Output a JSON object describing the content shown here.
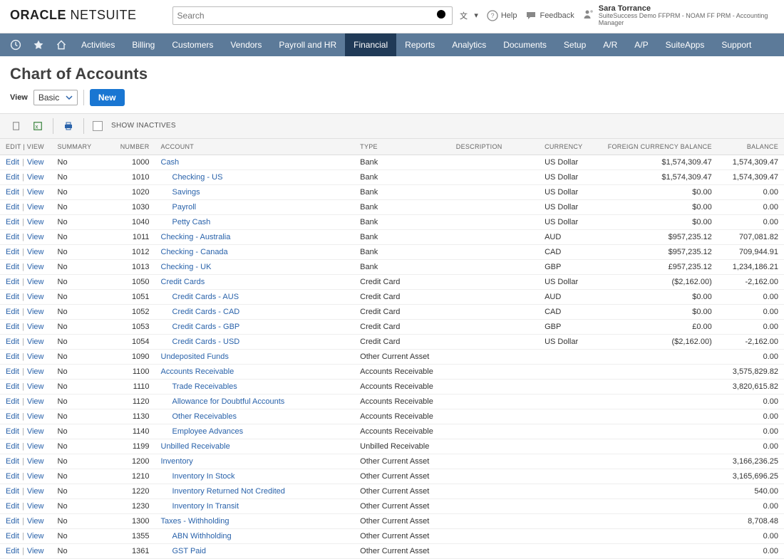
{
  "search": {
    "placeholder": "Search"
  },
  "help_label": "Help",
  "feedback_label": "Feedback",
  "user": {
    "name": "Sara Torrance",
    "subtitle": "SuiteSuccess Demo FFPRM - NOAM FF PRM - Accounting Manager"
  },
  "nav": {
    "items": [
      "Activities",
      "Billing",
      "Customers",
      "Vendors",
      "Payroll and HR",
      "Financial",
      "Reports",
      "Analytics",
      "Documents",
      "Setup",
      "A/R",
      "A/P",
      "SuiteApps",
      "Support"
    ],
    "active_index": 5
  },
  "page_title": "Chart of Accounts",
  "view_label": "View",
  "view_selected": "Basic",
  "new_button": "New",
  "show_inactives_label": "SHOW INACTIVES",
  "columns": {
    "edit": "EDIT | VIEW",
    "summary": "SUMMARY",
    "number": "NUMBER",
    "account": "ACCOUNT",
    "type": "TYPE",
    "desc": "DESCRIPTION",
    "curr": "CURRENCY",
    "fcb": "FOREIGN CURRENCY BALANCE",
    "bal": "BALANCE"
  },
  "action_edit": "Edit",
  "action_view": "View",
  "rows": [
    {
      "summary": "No",
      "number": "1000",
      "account": "Cash",
      "type": "Bank",
      "desc": "",
      "curr": "US Dollar",
      "fcb": "$1,574,309.47",
      "bal": "1,574,309.47",
      "indent": 0
    },
    {
      "summary": "No",
      "number": "1010",
      "account": "Checking - US",
      "type": "Bank",
      "desc": "",
      "curr": "US Dollar",
      "fcb": "$1,574,309.47",
      "bal": "1,574,309.47",
      "indent": 1
    },
    {
      "summary": "No",
      "number": "1020",
      "account": "Savings",
      "type": "Bank",
      "desc": "",
      "curr": "US Dollar",
      "fcb": "$0.00",
      "bal": "0.00",
      "indent": 1
    },
    {
      "summary": "No",
      "number": "1030",
      "account": "Payroll",
      "type": "Bank",
      "desc": "",
      "curr": "US Dollar",
      "fcb": "$0.00",
      "bal": "0.00",
      "indent": 1
    },
    {
      "summary": "No",
      "number": "1040",
      "account": "Petty Cash",
      "type": "Bank",
      "desc": "",
      "curr": "US Dollar",
      "fcb": "$0.00",
      "bal": "0.00",
      "indent": 1
    },
    {
      "summary": "No",
      "number": "1011",
      "account": "Checking - Australia",
      "type": "Bank",
      "desc": "",
      "curr": "AUD",
      "fcb": "$957,235.12",
      "bal": "707,081.82",
      "indent": 0
    },
    {
      "summary": "No",
      "number": "1012",
      "account": "Checking - Canada",
      "type": "Bank",
      "desc": "",
      "curr": "CAD",
      "fcb": "$957,235.12",
      "bal": "709,944.91",
      "indent": 0
    },
    {
      "summary": "No",
      "number": "1013",
      "account": "Checking - UK",
      "type": "Bank",
      "desc": "",
      "curr": "GBP",
      "fcb": "£957,235.12",
      "bal": "1,234,186.21",
      "indent": 0
    },
    {
      "summary": "No",
      "number": "1050",
      "account": "Credit Cards",
      "type": "Credit Card",
      "desc": "",
      "curr": "US Dollar",
      "fcb": "($2,162.00)",
      "bal": "-2,162.00",
      "indent": 0
    },
    {
      "summary": "No",
      "number": "1051",
      "account": "Credit Cards - AUS",
      "type": "Credit Card",
      "desc": "",
      "curr": "AUD",
      "fcb": "$0.00",
      "bal": "0.00",
      "indent": 1
    },
    {
      "summary": "No",
      "number": "1052",
      "account": "Credit Cards - CAD",
      "type": "Credit Card",
      "desc": "",
      "curr": "CAD",
      "fcb": "$0.00",
      "bal": "0.00",
      "indent": 1
    },
    {
      "summary": "No",
      "number": "1053",
      "account": "Credit Cards - GBP",
      "type": "Credit Card",
      "desc": "",
      "curr": "GBP",
      "fcb": "£0.00",
      "bal": "0.00",
      "indent": 1
    },
    {
      "summary": "No",
      "number": "1054",
      "account": "Credit Cards - USD",
      "type": "Credit Card",
      "desc": "",
      "curr": "US Dollar",
      "fcb": "($2,162.00)",
      "bal": "-2,162.00",
      "indent": 1
    },
    {
      "summary": "No",
      "number": "1090",
      "account": "Undeposited Funds",
      "type": "Other Current Asset",
      "desc": "",
      "curr": "",
      "fcb": "",
      "bal": "0.00",
      "indent": 0
    },
    {
      "summary": "No",
      "number": "1100",
      "account": "Accounts Receivable",
      "type": "Accounts Receivable",
      "desc": "",
      "curr": "",
      "fcb": "",
      "bal": "3,575,829.82",
      "indent": 0
    },
    {
      "summary": "No",
      "number": "1110",
      "account": "Trade Receivables",
      "type": "Accounts Receivable",
      "desc": "",
      "curr": "",
      "fcb": "",
      "bal": "3,820,615.82",
      "indent": 1
    },
    {
      "summary": "No",
      "number": "1120",
      "account": "Allowance for Doubtful Accounts",
      "type": "Accounts Receivable",
      "desc": "",
      "curr": "",
      "fcb": "",
      "bal": "0.00",
      "indent": 1
    },
    {
      "summary": "No",
      "number": "1130",
      "account": "Other Receivables",
      "type": "Accounts Receivable",
      "desc": "",
      "curr": "",
      "fcb": "",
      "bal": "0.00",
      "indent": 1
    },
    {
      "summary": "No",
      "number": "1140",
      "account": "Employee Advances",
      "type": "Accounts Receivable",
      "desc": "",
      "curr": "",
      "fcb": "",
      "bal": "0.00",
      "indent": 1
    },
    {
      "summary": "No",
      "number": "1199",
      "account": "Unbilled Receivable",
      "type": "Unbilled Receivable",
      "desc": "",
      "curr": "",
      "fcb": "",
      "bal": "0.00",
      "indent": 0
    },
    {
      "summary": "No",
      "number": "1200",
      "account": "Inventory",
      "type": "Other Current Asset",
      "desc": "",
      "curr": "",
      "fcb": "",
      "bal": "3,166,236.25",
      "indent": 0
    },
    {
      "summary": "No",
      "number": "1210",
      "account": "Inventory In Stock",
      "type": "Other Current Asset",
      "desc": "",
      "curr": "",
      "fcb": "",
      "bal": "3,165,696.25",
      "indent": 1
    },
    {
      "summary": "No",
      "number": "1220",
      "account": "Inventory Returned Not Credited",
      "type": "Other Current Asset",
      "desc": "",
      "curr": "",
      "fcb": "",
      "bal": "540.00",
      "indent": 1
    },
    {
      "summary": "No",
      "number": "1230",
      "account": "Inventory In Transit",
      "type": "Other Current Asset",
      "desc": "",
      "curr": "",
      "fcb": "",
      "bal": "0.00",
      "indent": 1
    },
    {
      "summary": "No",
      "number": "1300",
      "account": "Taxes - Withholding",
      "type": "Other Current Asset",
      "desc": "",
      "curr": "",
      "fcb": "",
      "bal": "8,708.48",
      "indent": 0
    },
    {
      "summary": "No",
      "number": "1355",
      "account": "ABN Withholding",
      "type": "Other Current Asset",
      "desc": "",
      "curr": "",
      "fcb": "",
      "bal": "0.00",
      "indent": 1
    },
    {
      "summary": "No",
      "number": "1361",
      "account": "GST Paid",
      "type": "Other Current Asset",
      "desc": "",
      "curr": "",
      "fcb": "",
      "bal": "0.00",
      "indent": 1
    }
  ]
}
